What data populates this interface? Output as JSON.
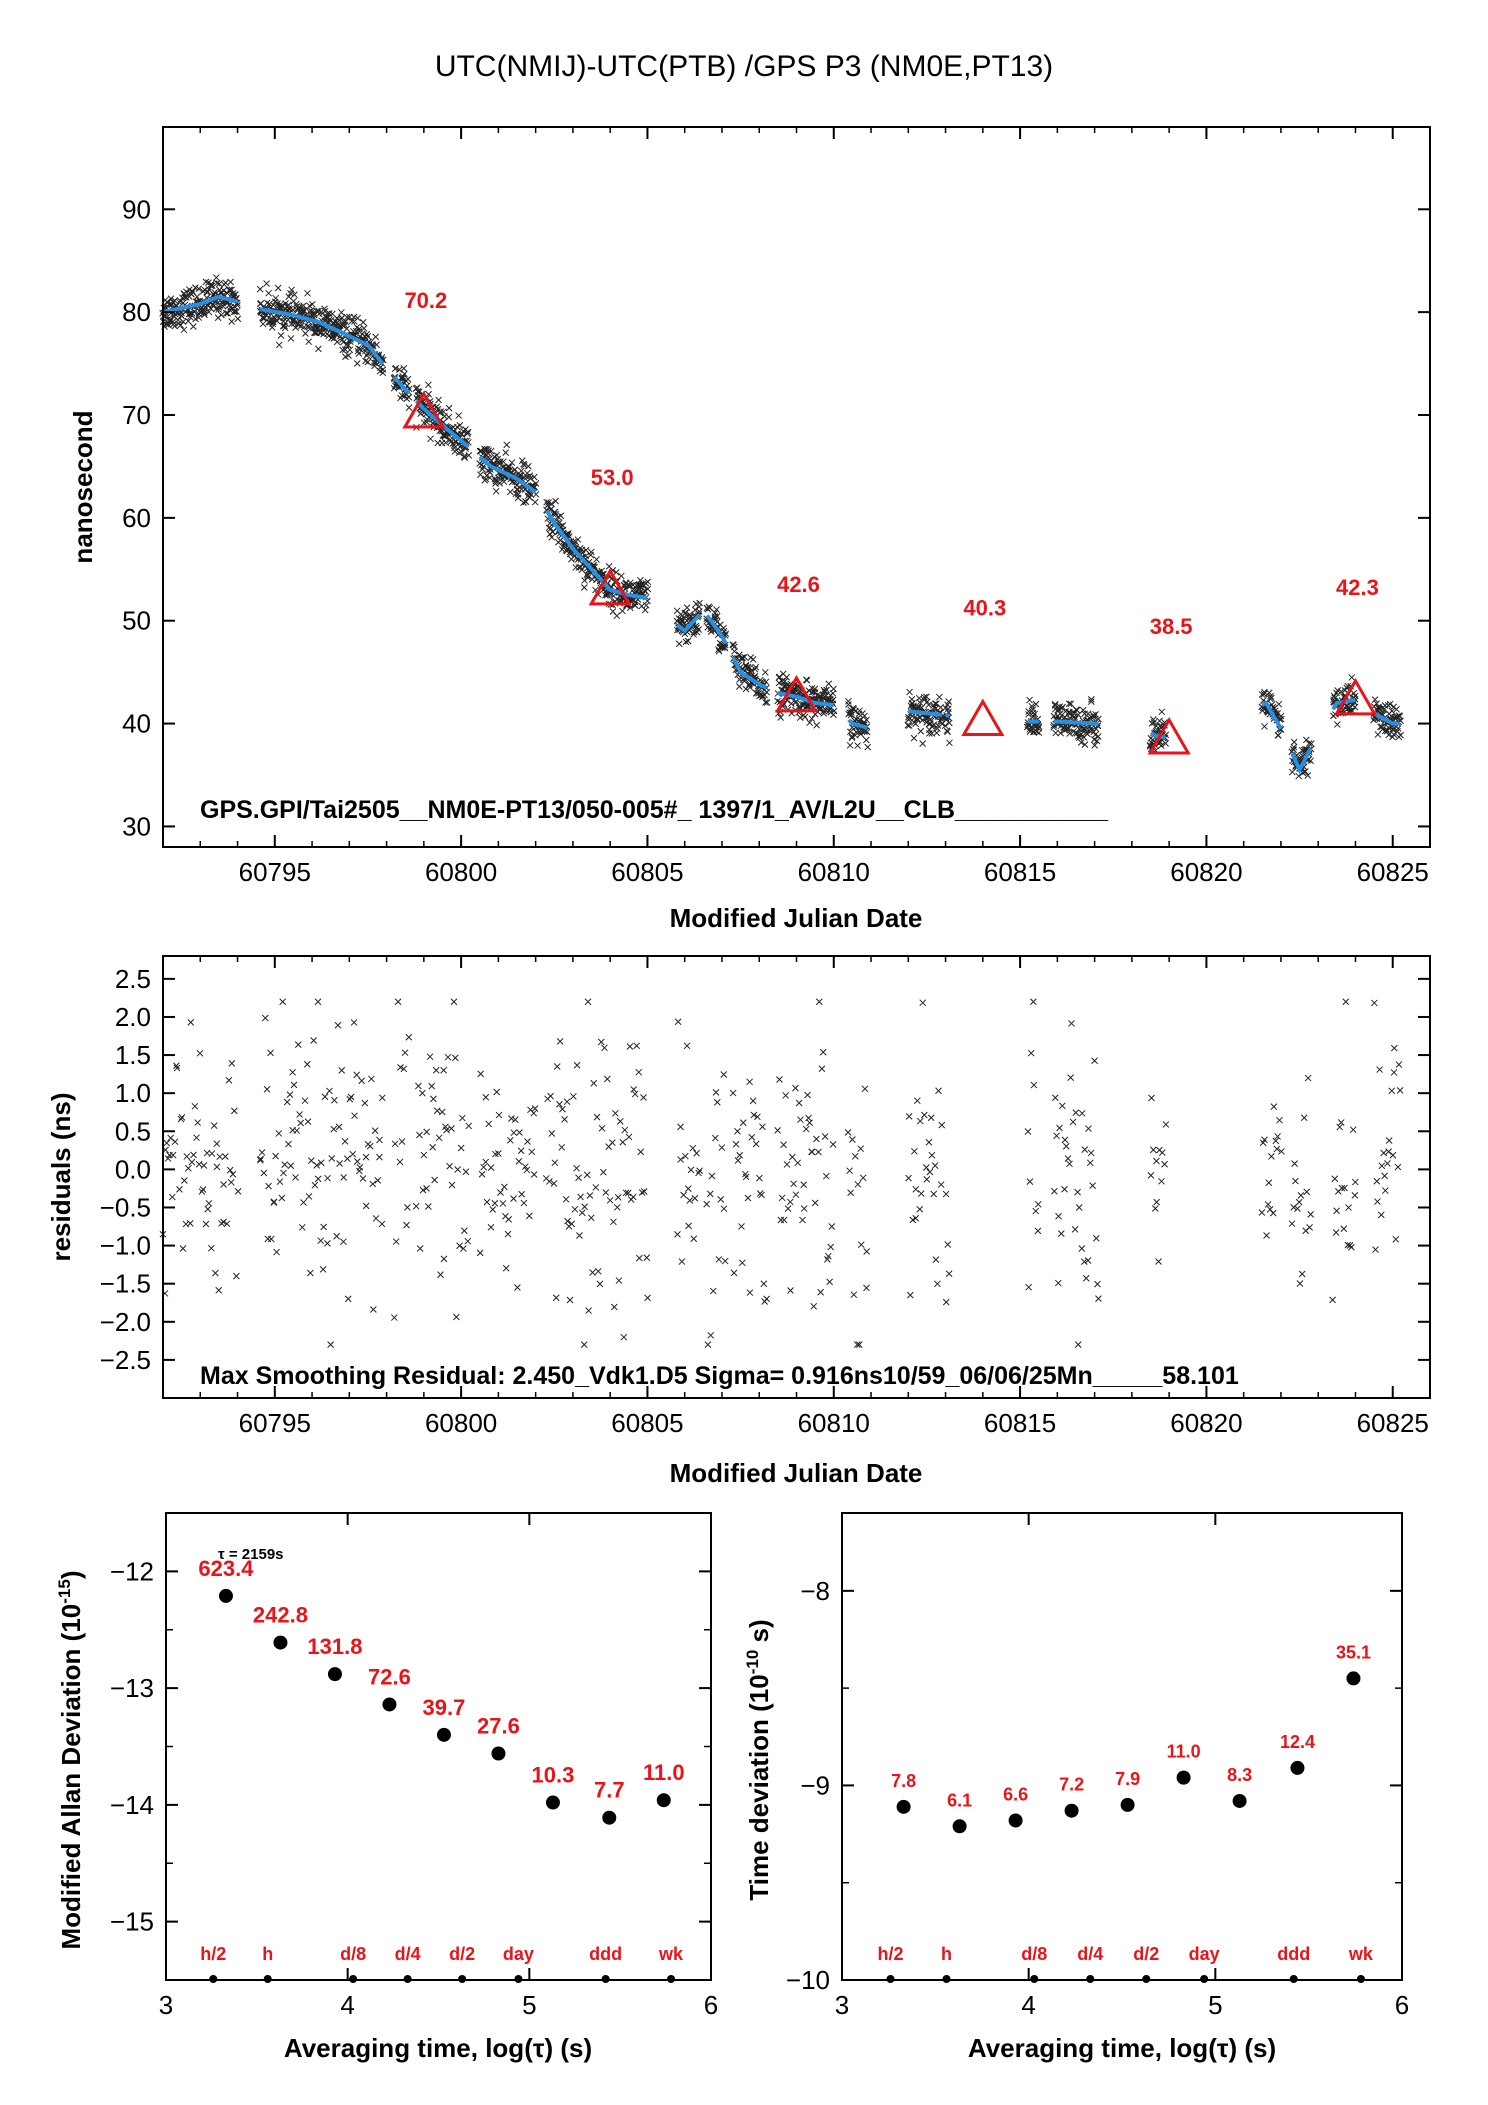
{
  "title": "UTC(NMIJ)-UTC(PTB)  /GPS  P3  (NM0E,PT13)",
  "colors": {
    "smooth": "#2b8fe0",
    "marker": "#e8141a",
    "points": "#222222"
  },
  "panel1": {
    "ylabel": "nanosecond",
    "xlabel": "Modified Julian Date",
    "note": "GPS.GPI/Tai2505__NM0E-PT13/050-005#_  1397/1_AV/L2U__CLB___________"
  },
  "panel2": {
    "ylabel": "residuals (ns)",
    "xlabel": "Modified Julian Date",
    "note": "Max Smoothing Residual: 2.450_Vdk1.D5  Sigma= 0.916ns10/59_06/06/25Mn_____58.101"
  },
  "panel3": {
    "ylabel_main": "Modified Allan Deviation (10",
    "ylabel_sup": "-15",
    "ylabel_end": ")",
    "xlabel": "Averaging time, log(τ) (s)",
    "tau_note": "τ = 2159s"
  },
  "panel4": {
    "ylabel_main": "Time deviation (10",
    "ylabel_sup": "-10",
    "ylabel_end": " s)",
    "xlabel": "Averaging time, log(τ) (s)"
  },
  "chart_data": [
    {
      "type": "scatter",
      "title": "UTC(NMIJ)-UTC(PTB)  /GPS  P3  (NM0E,PT13)",
      "xlabel": "Modified Julian Date",
      "ylabel": "nanosecond",
      "xlim": [
        60792,
        60826
      ],
      "ylim": [
        28,
        98
      ],
      "xticks": [
        60795,
        60800,
        60805,
        60810,
        60815,
        60820,
        60825
      ],
      "yticks": [
        30,
        40,
        50,
        60,
        70,
        80,
        90
      ],
      "smooth_series": {
        "name": "",
        "x": [
          60792.0,
          60793.0,
          60793.5,
          60794.0,
          60794.6,
          60795.5,
          60796.2,
          60796.8,
          60797.5,
          60798.0,
          60798.5,
          60799.0,
          60799.5,
          60800.0,
          60800.8,
          60801.5,
          60802.0,
          60802.5,
          60803.0,
          60803.5,
          60804.0,
          60804.5,
          60805.0,
          60805.5,
          60806.0,
          60806.5,
          60807.0,
          60807.5,
          60808.0,
          60808.5,
          60809.0,
          60809.5,
          60810.0,
          60810.5,
          60811.0,
          60812.0,
          60813.0,
          60814.0,
          60815.0,
          60816.0,
          60817.0,
          60818.0,
          60819.0,
          60820.0,
          60821.0,
          60821.6,
          60822.0,
          60822.5,
          60823.0,
          60823.5,
          60824.0,
          60824.5,
          60825.0
        ],
        "y": [
          80.0,
          80.8,
          81.5,
          81.0,
          80.3,
          79.7,
          79.0,
          78.0,
          76.8,
          74.5,
          72.5,
          70.6,
          69.0,
          67.5,
          65.0,
          63.8,
          62.5,
          59.5,
          57.0,
          55.0,
          53.0,
          52.5,
          52.2,
          50.5,
          49.0,
          51.0,
          48.5,
          45.0,
          43.8,
          43.0,
          42.6,
          42.0,
          41.8,
          40.0,
          39.5,
          41.2,
          40.8,
          40.5,
          40.2,
          40.2,
          40.0,
          39.5,
          38.5,
          39.5,
          41.0,
          42.0,
          39.5,
          35.5,
          39.0,
          42.0,
          42.3,
          41.0,
          40.0
        ]
      },
      "markers": [
        {
          "x": 60799.0,
          "y": 70.2,
          "label": "70.2"
        },
        {
          "x": 60804.0,
          "y": 53.0,
          "label": "53.0"
        },
        {
          "x": 60809.0,
          "y": 42.6,
          "label": "42.6"
        },
        {
          "x": 60814.0,
          "y": 40.3,
          "label": "40.3"
        },
        {
          "x": 60819.0,
          "y": 38.5,
          "label": "38.5"
        },
        {
          "x": 60824.0,
          "y": 42.3,
          "label": "42.3"
        }
      ],
      "data_segments": [
        [
          60792.0,
          60794.0
        ],
        [
          60794.6,
          60797.9
        ],
        [
          60798.2,
          60798.6
        ],
        [
          60798.8,
          60800.2
        ],
        [
          60800.5,
          60802.0
        ],
        [
          60802.3,
          60805.0
        ],
        [
          60805.8,
          60806.4
        ],
        [
          60806.6,
          60807.1
        ],
        [
          60807.3,
          60808.2
        ],
        [
          60808.5,
          60810.0
        ],
        [
          60810.4,
          60810.9
        ],
        [
          60812.0,
          60812.9
        ],
        [
          60813.0,
          60813.1
        ],
        [
          60815.2,
          60815.5
        ],
        [
          60815.9,
          60817.1
        ],
        [
          60818.5,
          60818.9
        ],
        [
          60821.5,
          60822.0
        ],
        [
          60822.3,
          60822.8
        ],
        [
          60823.4,
          60824.0
        ],
        [
          60824.5,
          60825.2
        ]
      ]
    },
    {
      "type": "scatter",
      "xlabel": "Modified Julian Date",
      "ylabel": "residuals (ns)",
      "xlim": [
        60792,
        60826
      ],
      "ylim": [
        -3.0,
        2.8
      ],
      "xticks": [
        60795,
        60800,
        60805,
        60810,
        60815,
        60820,
        60825
      ],
      "yticks": [
        -2.5,
        -2.0,
        -1.5,
        -1.0,
        -0.5,
        0.0,
        0.5,
        1.0,
        1.5,
        2.0,
        2.5
      ],
      "ytick_labels": [
        "−2.5",
        "−2.0",
        "−1.5",
        "−1.0",
        "−0.5",
        "0.0",
        "0.5",
        "1.0",
        "1.5",
        "2.0",
        "2.5"
      ],
      "sigma": 0.916,
      "max_residual": 2.45
    },
    {
      "type": "scatter",
      "xlabel": "Averaging time, log(τ) (s)",
      "ylabel": "Modified Allan Deviation (10^-15)",
      "xlim": [
        3,
        6
      ],
      "ylim": [
        -15.5,
        -11.5
      ],
      "xticks": [
        3,
        4,
        5,
        6
      ],
      "yticks": [
        -15,
        -14,
        -13,
        -12
      ],
      "ytick_labels": [
        "−15",
        "−14",
        "−13",
        "−12"
      ],
      "x": [
        3.33,
        3.63,
        3.93,
        4.23,
        4.53,
        4.83,
        5.13,
        5.44,
        5.74
      ],
      "y": [
        -12.21,
        -12.61,
        -12.88,
        -13.14,
        -13.4,
        -13.56,
        -13.98,
        -14.11,
        -13.96
      ],
      "labels": [
        "623.4",
        "242.8",
        "131.8",
        "72.6",
        "39.7",
        "27.6",
        "10.3",
        "7.7",
        "11.0"
      ],
      "markers_x": [
        3.26,
        3.56,
        4.03,
        4.33,
        4.63,
        4.94,
        5.42,
        5.78
      ],
      "marker_labels": [
        "h/2",
        "h",
        "d/8",
        "d/4",
        "d/2",
        "day",
        "ddd",
        "wk"
      ]
    },
    {
      "type": "scatter",
      "xlabel": "Averaging time, log(τ) (s)",
      "ylabel": "Time deviation (10^-10 s)",
      "xlim": [
        3,
        6
      ],
      "ylim": [
        -10,
        -7.6
      ],
      "xticks": [
        3,
        4,
        5,
        6
      ],
      "yticks": [
        -10,
        -9,
        -8
      ],
      "ytick_labels": [
        "−10",
        "−9",
        "−8"
      ],
      "x": [
        3.33,
        3.63,
        3.93,
        4.23,
        4.53,
        4.83,
        5.13,
        5.44,
        5.74
      ],
      "y": [
        -9.11,
        -9.21,
        -9.18,
        -9.13,
        -9.1,
        -8.96,
        -9.08,
        -8.91,
        -8.45
      ],
      "labels": [
        "7.8",
        "6.1",
        "6.6",
        "7.2",
        "7.9",
        "11.0",
        "8.3",
        "12.4",
        "35.1"
      ],
      "markers_x": [
        3.26,
        3.56,
        4.03,
        4.33,
        4.63,
        4.94,
        5.42,
        5.78
      ],
      "marker_labels": [
        "h/2",
        "h",
        "d/8",
        "d/4",
        "d/2",
        "day",
        "ddd",
        "wk"
      ]
    }
  ]
}
